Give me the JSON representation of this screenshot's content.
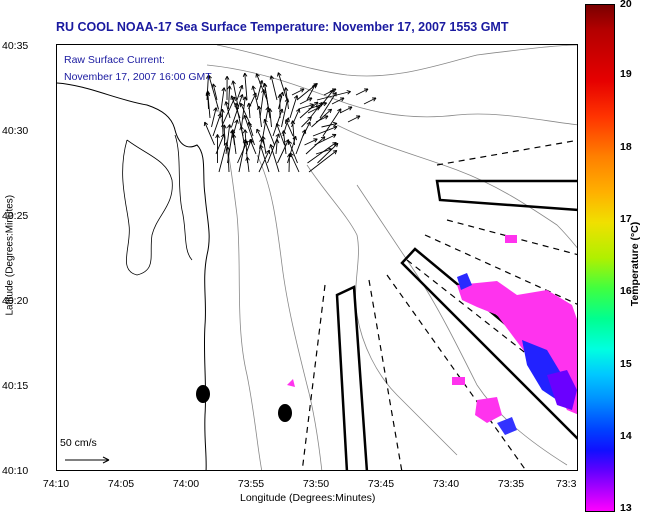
{
  "title": "RU COOL  NOAA-17  Sea Surface Temperature:  November 17, 2007 1553 GMT",
  "current": {
    "label_line1": "Raw Surface Current:",
    "label_line2": "November 17, 2007 16:00 GMT"
  },
  "axes": {
    "ylabel": "Latitude (Degrees:Minutes)",
    "xlabel": "Longitude (Degrees:Minutes)",
    "yticks": [
      "40:35",
      "40:30",
      "40:25",
      "40:20",
      "40:15",
      "40:10"
    ],
    "xticks": [
      "74:10",
      "74:05",
      "74:00",
      "73:55",
      "73:50",
      "73:45",
      "73:40",
      "73:35",
      "73:3"
    ]
  },
  "scale_label": "50 cm/s",
  "colorbar": {
    "label": "Temperature (°C)",
    "ticks": [
      "20",
      "19",
      "18",
      "17",
      "16",
      "15",
      "14",
      "13"
    ],
    "range": [
      13,
      20
    ]
  },
  "colors": {
    "title": "#1a1aa0",
    "sst_low": "#ff00ff",
    "sst_mid": "#0000ff"
  }
}
